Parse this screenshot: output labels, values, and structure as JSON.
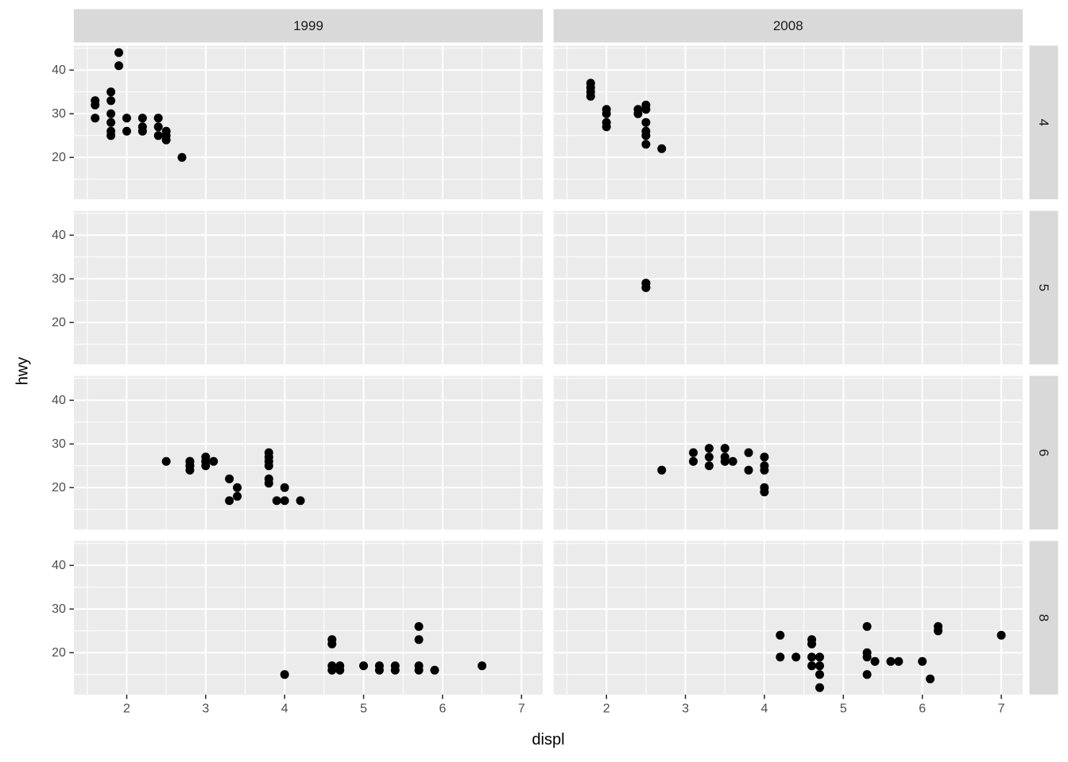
{
  "chart_data": {
    "type": "scatter",
    "title": "",
    "xlabel": "displ",
    "ylabel": "hwy",
    "x_axis": {
      "label": "displ",
      "ticks": [
        2,
        3,
        4,
        5,
        6,
        7
      ],
      "minor_ticks": [
        1.5,
        2.5,
        3.5,
        4.5,
        5.5,
        6.5
      ],
      "domain": [
        1.33,
        7.27
      ]
    },
    "y_axis": {
      "label": "hwy",
      "ticks": [
        20,
        30,
        40
      ],
      "minor_ticks": [
        15,
        25,
        35,
        45
      ],
      "domain": [
        10.4,
        45.6
      ]
    },
    "facet": {
      "cols": [
        "1999",
        "2008"
      ],
      "rows": [
        "4",
        "5",
        "6",
        "8"
      ]
    },
    "grid": "on",
    "legend": "none",
    "panels": [
      {
        "col": "1999",
        "row": "4",
        "points": [
          [
            1.6,
            33
          ],
          [
            1.6,
            32
          ],
          [
            1.6,
            29
          ],
          [
            1.8,
            35
          ],
          [
            1.8,
            33
          ],
          [
            1.8,
            30
          ],
          [
            1.8,
            28
          ],
          [
            1.8,
            26
          ],
          [
            1.8,
            25
          ],
          [
            1.9,
            44
          ],
          [
            1.9,
            41
          ],
          [
            2.0,
            29
          ],
          [
            2.0,
            26
          ],
          [
            2.2,
            29
          ],
          [
            2.2,
            27
          ],
          [
            2.2,
            26
          ],
          [
            2.4,
            29
          ],
          [
            2.4,
            27
          ],
          [
            2.4,
            25
          ],
          [
            2.5,
            26
          ],
          [
            2.5,
            25
          ],
          [
            2.5,
            24
          ],
          [
            2.7,
            20
          ]
        ]
      },
      {
        "col": "2008",
        "row": "4",
        "points": [
          [
            1.8,
            37
          ],
          [
            1.8,
            36
          ],
          [
            1.8,
            35
          ],
          [
            1.8,
            34
          ],
          [
            2.0,
            31
          ],
          [
            2.0,
            30
          ],
          [
            2.0,
            28
          ],
          [
            2.0,
            27
          ],
          [
            2.4,
            31
          ],
          [
            2.4,
            30
          ],
          [
            2.5,
            32
          ],
          [
            2.5,
            31
          ],
          [
            2.5,
            28
          ],
          [
            2.5,
            26
          ],
          [
            2.5,
            25
          ],
          [
            2.5,
            23
          ],
          [
            2.7,
            22
          ]
        ]
      },
      {
        "col": "1999",
        "row": "5",
        "points": []
      },
      {
        "col": "2008",
        "row": "5",
        "points": [
          [
            2.5,
            29
          ],
          [
            2.5,
            29
          ],
          [
            2.5,
            28
          ],
          [
            2.5,
            28
          ]
        ]
      },
      {
        "col": "1999",
        "row": "6",
        "points": [
          [
            2.5,
            26
          ],
          [
            2.8,
            26
          ],
          [
            2.8,
            26
          ],
          [
            2.8,
            25
          ],
          [
            2.8,
            25
          ],
          [
            2.8,
            24
          ],
          [
            3.0,
            27
          ],
          [
            3.0,
            26
          ],
          [
            3.0,
            26
          ],
          [
            3.0,
            25
          ],
          [
            3.1,
            26
          ],
          [
            3.3,
            22
          ],
          [
            3.3,
            17
          ],
          [
            3.4,
            20
          ],
          [
            3.4,
            18
          ],
          [
            3.8,
            28
          ],
          [
            3.8,
            27
          ],
          [
            3.8,
            26
          ],
          [
            3.8,
            25
          ],
          [
            3.8,
            22
          ],
          [
            3.8,
            21
          ],
          [
            3.9,
            17
          ],
          [
            4.0,
            20
          ],
          [
            4.0,
            17
          ],
          [
            4.2,
            17
          ]
        ]
      },
      {
        "col": "2008",
        "row": "6",
        "points": [
          [
            2.7,
            24
          ],
          [
            3.1,
            28
          ],
          [
            3.1,
            26
          ],
          [
            3.3,
            29
          ],
          [
            3.3,
            27
          ],
          [
            3.3,
            25
          ],
          [
            3.5,
            29
          ],
          [
            3.5,
            27
          ],
          [
            3.5,
            26
          ],
          [
            3.6,
            26
          ],
          [
            3.8,
            28
          ],
          [
            3.8,
            24
          ],
          [
            4.0,
            27
          ],
          [
            4.0,
            25
          ],
          [
            4.0,
            24
          ],
          [
            4.0,
            20
          ],
          [
            4.0,
            19
          ]
        ]
      },
      {
        "col": "1999",
        "row": "8",
        "points": [
          [
            4.0,
            15
          ],
          [
            4.6,
            23
          ],
          [
            4.6,
            22
          ],
          [
            4.6,
            17
          ],
          [
            4.6,
            16
          ],
          [
            4.7,
            17
          ],
          [
            4.7,
            16
          ],
          [
            5.0,
            17
          ],
          [
            5.2,
            17
          ],
          [
            5.2,
            16
          ],
          [
            5.4,
            17
          ],
          [
            5.4,
            16
          ],
          [
            5.7,
            26
          ],
          [
            5.7,
            23
          ],
          [
            5.7,
            17
          ],
          [
            5.7,
            16
          ],
          [
            5.9,
            16
          ],
          [
            6.5,
            17
          ]
        ]
      },
      {
        "col": "2008",
        "row": "8",
        "points": [
          [
            4.2,
            24
          ],
          [
            4.2,
            19
          ],
          [
            4.4,
            19
          ],
          [
            4.6,
            23
          ],
          [
            4.6,
            22
          ],
          [
            4.6,
            19
          ],
          [
            4.6,
            17
          ],
          [
            4.7,
            19
          ],
          [
            4.7,
            17
          ],
          [
            4.7,
            15
          ],
          [
            4.7,
            12
          ],
          [
            5.3,
            26
          ],
          [
            5.3,
            20
          ],
          [
            5.3,
            19
          ],
          [
            5.3,
            15
          ],
          [
            5.4,
            18
          ],
          [
            5.6,
            18
          ],
          [
            5.7,
            18
          ],
          [
            6.0,
            18
          ],
          [
            6.1,
            14
          ],
          [
            6.2,
            26
          ],
          [
            6.2,
            25
          ],
          [
            7.0,
            24
          ]
        ]
      }
    ],
    "colors": {
      "figure_bg": "#FFFFFF",
      "panel_bg": "#EBEBEB",
      "strip_bg": "#D9D9D9",
      "grid": "#FFFFFF",
      "point": "#000000",
      "tick_label": "#4D4D4D",
      "tick_mark": "#333333",
      "strip_text": "#1A1A1A",
      "axis_title": "#000000"
    }
  }
}
